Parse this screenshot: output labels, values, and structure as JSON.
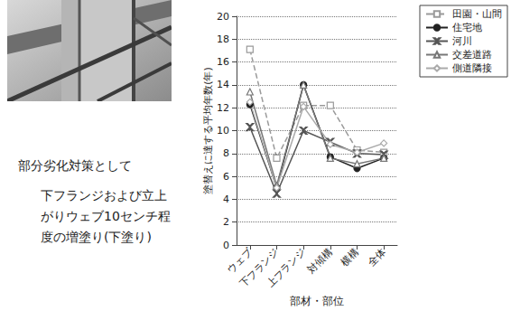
{
  "chart_data": {
    "type": "line",
    "y_label": "塗替えに達する平均年数(年)",
    "x_label": "部材・部位",
    "categories": [
      "ウェブ",
      "下フランジ",
      "上フランジ",
      "対傾構",
      "横構",
      "全体"
    ],
    "series": [
      {
        "name": "田園・山間",
        "color": "#9a9a9a",
        "marker": "square",
        "line_style": "dashed",
        "values": [
          17.1,
          7.6,
          12.2,
          12.2,
          8.3,
          8.1
        ]
      },
      {
        "name": "住宅地",
        "color": "#222222",
        "marker": "circle",
        "line_style": "solid",
        "values": [
          12.3,
          5.0,
          14.0,
          7.7,
          6.7,
          7.6
        ]
      },
      {
        "name": "河川",
        "color": "#555555",
        "marker": "x",
        "line_style": "solid",
        "values": [
          10.3,
          4.5,
          10.0,
          9.0,
          8.0,
          7.9
        ]
      },
      {
        "name": "交差道路",
        "color": "#777777",
        "marker": "triangle",
        "line_style": "solid",
        "values": [
          13.4,
          5.2,
          14.0,
          7.6,
          7.1,
          7.6
        ]
      },
      {
        "name": "側道隣接",
        "color": "#aaaaaa",
        "marker": "diamond",
        "line_style": "solid",
        "values": [
          12.5,
          5.0,
          12.1,
          8.8,
          8.1,
          8.9
        ]
      }
    ],
    "ylim": [
      0,
      20
    ],
    "yticks": [
      0,
      2,
      4,
      6,
      8,
      10,
      12,
      14,
      16,
      18,
      20
    ],
    "grid": true,
    "legend": "upper right",
    "annotations": [
      "部分劣化対策として",
      "下フランジおよび立上",
      "がりウェブ10センチ程",
      "度の増塗り(下塗り)"
    ]
  }
}
